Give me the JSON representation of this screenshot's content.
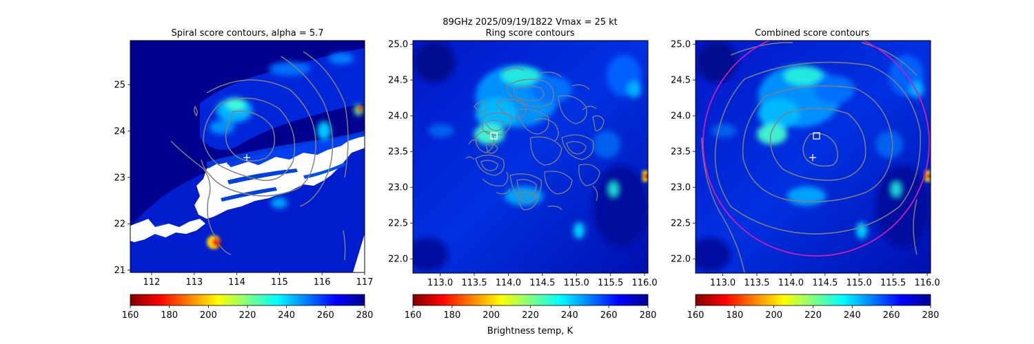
{
  "suptitle_line1": "89GHz  2025/09/19/1822    Vmax = 25 kt",
  "colorbar_label": "Brightness temp, K",
  "colormap": [
    "#800000",
    "#ff0000",
    "#ff8000",
    "#ffff00",
    "#80ff80",
    "#00ffff",
    "#0080ff",
    "#0000ff",
    "#00008f"
  ],
  "contour_color": "#808080",
  "ring_color": "#c81eb4",
  "chart_data": [
    {
      "type": "heatmap",
      "title": "Spiral score contours, alpha =  5.7",
      "xlim": [
        111.5,
        117.0
      ],
      "ylim": [
        20.95,
        25.95
      ],
      "xticks": [
        112,
        113,
        114,
        115,
        116,
        117
      ],
      "xtick_labels": [
        "112",
        "113",
        "114",
        "115",
        "116",
        "117"
      ],
      "yticks": [
        21,
        22,
        23,
        24,
        25
      ],
      "ytick_labels": [
        "21",
        "22",
        "23",
        "24",
        "25"
      ],
      "colorbar": {
        "min": 160,
        "max": 280,
        "ticks": [
          160,
          180,
          200,
          220,
          240,
          260,
          280
        ],
        "tick_labels": [
          "160",
          "180",
          "200",
          "220",
          "240",
          "260",
          "280"
        ]
      },
      "plus_marker": [
        114.27,
        23.44
      ],
      "cold_cores": [
        {
          "x": 114.6,
          "y": 24.55,
          "value": 232
        },
        {
          "x": 114.2,
          "y": 24.2,
          "value": 238
        },
        {
          "x": 113.6,
          "y": 21.7,
          "value": 175
        },
        {
          "x": 116.9,
          "y": 24.55,
          "value": 210
        },
        {
          "x": 114.3,
          "y": 23.5,
          "value": 248
        }
      ],
      "missing_data": true,
      "contours": "spiral score contours centered near (114.2, 23.8)"
    },
    {
      "type": "heatmap",
      "title": "Ring score contours",
      "xlim": [
        112.6,
        116.05
      ],
      "ylim": [
        21.8,
        25.05
      ],
      "xticks": [
        113.0,
        113.5,
        114.0,
        114.5,
        115.0,
        115.5,
        116.0
      ],
      "xtick_labels": [
        "113.0",
        "113.5",
        "114.0",
        "114.5",
        "115.0",
        "115.5",
        "116.0"
      ],
      "yticks": [
        22.0,
        22.5,
        23.0,
        23.5,
        24.0,
        24.5,
        25.0
      ],
      "ytick_labels": [
        "22.0",
        "22.5",
        "23.0",
        "23.5",
        "24.0",
        "24.5",
        "25.0"
      ],
      "colorbar": {
        "min": 160,
        "max": 280,
        "ticks": [
          160,
          180,
          200,
          220,
          240,
          260,
          280
        ],
        "tick_labels": [
          "160",
          "180",
          "200",
          "220",
          "240",
          "260",
          "280"
        ]
      },
      "square_marker": [
        113.72,
        23.74
      ],
      "cold_cores": [
        {
          "x": 113.95,
          "y": 24.6,
          "value": 228
        },
        {
          "x": 113.9,
          "y": 24.05,
          "value": 238
        },
        {
          "x": 115.95,
          "y": 23.15,
          "value": 180
        },
        {
          "x": 115.5,
          "y": 22.95,
          "value": 238
        },
        {
          "x": 114.95,
          "y": 22.35,
          "value": 240
        }
      ],
      "contours": "dense ring score contours within ~1 degree of (114.2, 23.7)"
    },
    {
      "type": "heatmap",
      "title": "Combined score contours",
      "xlim": [
        112.6,
        116.05
      ],
      "ylim": [
        21.8,
        25.05
      ],
      "xticks": [
        113.0,
        113.5,
        114.0,
        114.5,
        115.0,
        115.5,
        116.0
      ],
      "xtick_labels": [
        "113.0",
        "113.5",
        "114.0",
        "114.5",
        "115.0",
        "115.5",
        "116.0"
      ],
      "yticks": [
        22.0,
        22.5,
        23.0,
        23.5,
        24.0,
        24.5,
        25.0
      ],
      "ytick_labels": [
        "22.0",
        "22.5",
        "23.0",
        "23.5",
        "24.0",
        "24.5",
        "25.0"
      ],
      "colorbar": {
        "min": 160,
        "max": 280,
        "ticks": [
          160,
          180,
          200,
          220,
          240,
          260,
          280
        ],
        "tick_labels": [
          "160",
          "180",
          "200",
          "220",
          "240",
          "260",
          "280"
        ]
      },
      "square_marker": [
        114.3,
        23.74
      ],
      "plus_marker": [
        114.27,
        23.44
      ],
      "ring_circle": {
        "center": [
          114.3,
          23.64
        ],
        "radius_deg": 1.62
      },
      "cold_cores": [
        {
          "x": 113.95,
          "y": 24.6,
          "value": 228
        },
        {
          "x": 113.9,
          "y": 24.05,
          "value": 238
        },
        {
          "x": 115.95,
          "y": 23.15,
          "value": 180
        },
        {
          "x": 115.5,
          "y": 22.95,
          "value": 238
        },
        {
          "x": 114.95,
          "y": 22.35,
          "value": 240
        }
      ],
      "contours": "concentric combined score contours centered near (114.3, 23.55)"
    }
  ]
}
